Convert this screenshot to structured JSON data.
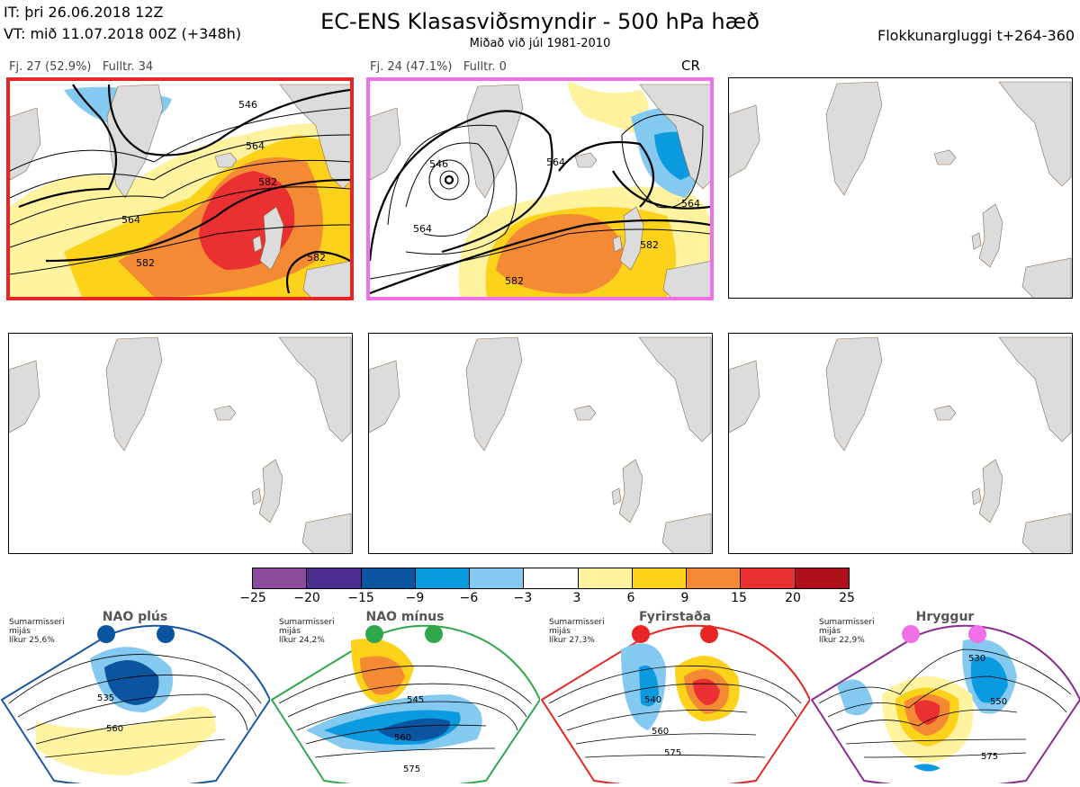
{
  "header": {
    "it": "IT: þri 26.06.2018 12Z",
    "vt": "VT: mið 11.07.2018 00Z  (+348h)",
    "title": "EC-ENS Klasasviðsmyndir - 500 hPa hæð",
    "subtitle": "Miðað við júl 1981-2010",
    "window": "Flokkunargluggi t+264-360"
  },
  "clusters": [
    {
      "label": "Fj. 27 (52.9%)",
      "full": "Fulltr. 34",
      "frame_color": "#e82424",
      "regime": "Fyrirstaða"
    },
    {
      "label": "Fj. 24 (47.1%)",
      "full": "Fulltr. 0",
      "frame_color": "#f070e8",
      "regime": "Hryggur",
      "tag": "CR"
    }
  ],
  "cluster_contours": {
    "panel1": [
      "546",
      "564",
      "582",
      "564",
      "582",
      "582"
    ],
    "panel2": [
      "546",
      "564",
      "564",
      "582",
      "564",
      "582"
    ]
  },
  "colorbar": {
    "ticks": [
      "−25",
      "−20",
      "−15",
      "−9",
      "−6",
      "−3",
      "3",
      "6",
      "9",
      "15",
      "20",
      "25"
    ],
    "colors": [
      "#8e4a9c",
      "#4b2e8f",
      "#0b55a0",
      "#0a9ae0",
      "#84c9ef",
      "#ffffff",
      "#fff3a0",
      "#fcd21a",
      "#f48a34",
      "#ea3030",
      "#b0101a"
    ]
  },
  "regimes": [
    {
      "name": "NAO plús",
      "season": [
        "Sumarmisseri",
        "mijás",
        "líkur 25,6%"
      ],
      "color": "#1a56a0",
      "dot_color": "#0b55a0",
      "contours": [
        "535",
        "560"
      ]
    },
    {
      "name": "NAO mínus",
      "season": [
        "Sumarmisseri",
        "mijás",
        "líkur 24,2%"
      ],
      "color": "#2ea84a",
      "dot_color": "#2ea84a",
      "contours": [
        "545",
        "560",
        "575"
      ]
    },
    {
      "name": "Fyrirstaða",
      "season": [
        "Sumarmisseri",
        "mijás",
        "líkur 27,3%"
      ],
      "color": "#e82424",
      "dot_color": "#e82424",
      "contours": [
        "540",
        "560",
        "575"
      ]
    },
    {
      "name": "Hryggur",
      "season": [
        "Sumarmisseri",
        "mijás",
        "líkur 22,9%"
      ],
      "color": "#8a2a8e",
      "dot_color": "#f070e8",
      "contours": [
        "530",
        "550",
        "575"
      ]
    }
  ]
}
